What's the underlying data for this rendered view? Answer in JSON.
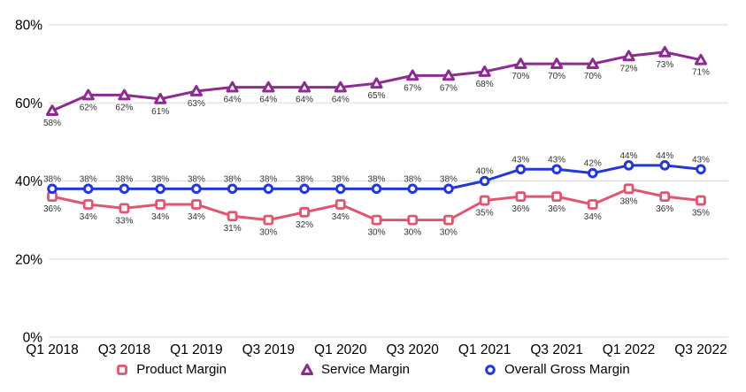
{
  "chart_data": {
    "type": "line",
    "title": "",
    "xlabel": "",
    "ylabel": "",
    "ylim": [
      0,
      80
    ],
    "grid": true,
    "legend_position": "bottom",
    "y_ticks": [
      "0%",
      "20%",
      "40%",
      "60%",
      "80%"
    ],
    "y_tick_values": [
      0,
      20,
      40,
      60,
      80
    ],
    "x_ticks": {
      "labels": [
        "Q1 2018",
        "Q3 2018",
        "Q1 2019",
        "Q3 2019",
        "Q1 2020",
        "Q3 2020",
        "Q1 2021",
        "Q3 2021",
        "Q1 2022",
        "Q3 2022"
      ],
      "point_indices": [
        0,
        2,
        4,
        6,
        8,
        10,
        12,
        14,
        16,
        18
      ]
    },
    "data_label_suffix": "%",
    "series": [
      {
        "name": "Product Margin",
        "marker": "square",
        "color": "#E0566E",
        "label_position": "below",
        "values": [
          36,
          34,
          33,
          34,
          34,
          31,
          30,
          32,
          34,
          30,
          30,
          30,
          35,
          36,
          36,
          34,
          38,
          36,
          35
        ]
      },
      {
        "name": "Service Margin",
        "marker": "triangle",
        "color": "#8E2B93",
        "label_position": "below",
        "values": [
          58,
          62,
          62,
          61,
          63,
          64,
          64,
          64,
          64,
          65,
          67,
          67,
          68,
          70,
          70,
          70,
          72,
          73,
          71
        ]
      },
      {
        "name": "Overall Gross Margin",
        "marker": "circle",
        "color": "#2238D8",
        "label_position": "above",
        "values": [
          38,
          38,
          38,
          38,
          38,
          38,
          38,
          38,
          38,
          38,
          38,
          38,
          40,
          43,
          43,
          42,
          44,
          44,
          43
        ]
      }
    ],
    "colors": {
      "gridline": "#d9d9d9",
      "tick_text": "#000000",
      "data_label_text": "#333333",
      "background": "#ffffff"
    }
  }
}
